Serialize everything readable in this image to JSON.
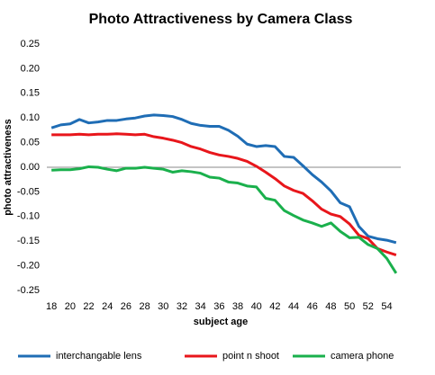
{
  "chart_data": {
    "type": "line",
    "title": "Photo Attractiveness by Camera Class",
    "x_label": "subject age",
    "y_label": "photo attractiveness",
    "x": [
      18,
      19,
      20,
      21,
      22,
      23,
      24,
      25,
      26,
      27,
      28,
      29,
      30,
      31,
      32,
      33,
      34,
      35,
      36,
      37,
      38,
      39,
      40,
      41,
      42,
      43,
      44,
      45,
      46,
      47,
      48,
      49,
      50,
      51,
      52,
      53,
      54,
      55
    ],
    "xlim": [
      17.5,
      55.5
    ],
    "xticks": [
      18,
      20,
      22,
      24,
      26,
      28,
      30,
      32,
      34,
      36,
      38,
      40,
      42,
      44,
      46,
      48,
      50,
      52,
      54
    ],
    "ylim": [
      -0.25,
      0.25
    ],
    "yticks": [
      -0.25,
      {
        "value": -0.2,
        "label": "-0.20"
      },
      -0.15,
      {
        "value": -0.1,
        "label": "-0.10"
      },
      -0.05,
      {
        "value": 0,
        "label": "0.00"
      },
      0.05,
      {
        "value": 0.1,
        "label": "0.10"
      },
      0.15,
      {
        "value": 0.2,
        "label": "0.20"
      },
      0.25
    ],
    "grid": false,
    "legend": "bottom",
    "series": [
      {
        "name": "interchangable lens",
        "color": "#1f6db5",
        "values": [
          0.08,
          0.086,
          0.088,
          0.097,
          0.09,
          0.092,
          0.095,
          0.095,
          0.098,
          0.1,
          0.104,
          0.106,
          0.105,
          0.103,
          0.097,
          0.089,
          0.085,
          0.083,
          0.083,
          0.075,
          0.063,
          0.047,
          0.042,
          0.044,
          0.042,
          0.022,
          0.02,
          0.003,
          -0.015,
          -0.03,
          -0.048,
          -0.072,
          -0.08,
          -0.12,
          -0.14,
          -0.145,
          -0.148,
          -0.153
        ]
      },
      {
        "name": "point n shoot",
        "color": "#e8161b",
        "values": [
          0.066,
          0.066,
          0.066,
          0.067,
          0.066,
          0.067,
          0.067,
          0.068,
          0.067,
          0.066,
          0.067,
          0.062,
          0.059,
          0.055,
          0.05,
          0.042,
          0.037,
          0.03,
          0.025,
          0.022,
          0.018,
          0.012,
          0.002,
          -0.01,
          -0.023,
          -0.038,
          -0.047,
          -0.053,
          -0.068,
          -0.085,
          -0.095,
          -0.1,
          -0.115,
          -0.138,
          -0.145,
          -0.165,
          -0.172,
          -0.178
        ]
      },
      {
        "name": "camera phone",
        "color": "#1ab04c",
        "values": [
          -0.006,
          -0.005,
          -0.005,
          -0.003,
          0.001,
          0.0,
          -0.004,
          -0.007,
          -0.002,
          -0.002,
          0.0,
          -0.002,
          -0.004,
          -0.01,
          -0.007,
          -0.009,
          -0.012,
          -0.02,
          -0.022,
          -0.03,
          -0.032,
          -0.038,
          -0.04,
          -0.063,
          -0.067,
          -0.088,
          -0.098,
          -0.107,
          -0.113,
          -0.12,
          -0.113,
          -0.13,
          -0.143,
          -0.142,
          -0.157,
          -0.165,
          -0.185,
          -0.215
        ]
      }
    ]
  }
}
